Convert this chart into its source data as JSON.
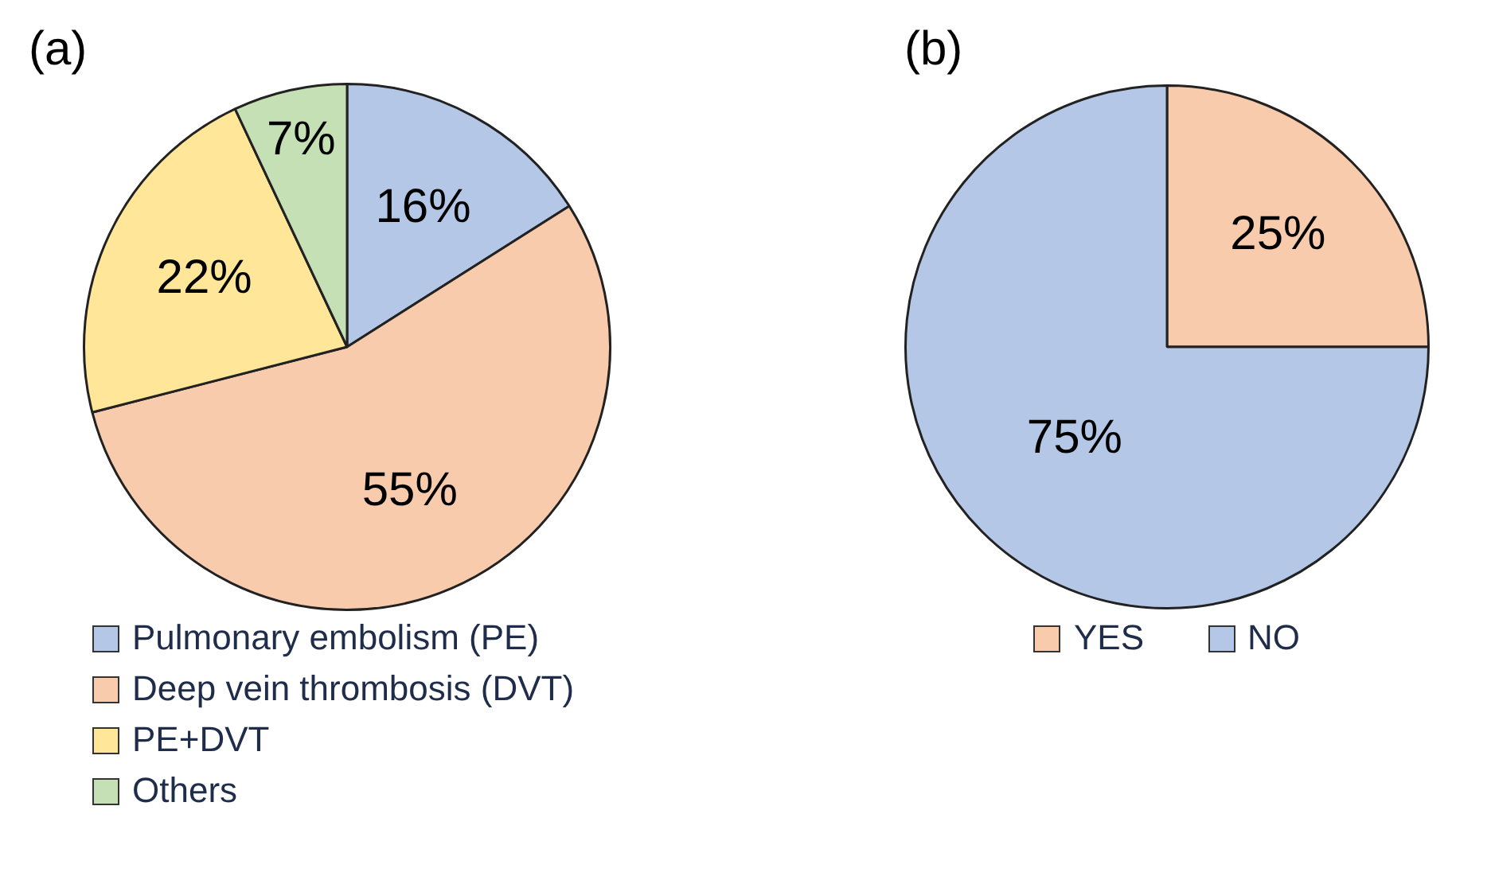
{
  "chart_data": [
    {
      "type": "pie",
      "title": "(a)",
      "categories": [
        "Pulmonary embolism (PE)",
        "Deep vein thrombosis (DVT)",
        "PE+DVT",
        "Others"
      ],
      "values": [
        16,
        55,
        22,
        7
      ],
      "colors": [
        "#b4c7e7",
        "#f8cbad",
        "#ffe699",
        "#c5e0b4"
      ],
      "value_labels": [
        "16%",
        "55%",
        "22%",
        "7%"
      ],
      "legend": "bottom"
    },
    {
      "type": "pie",
      "title": "(b)",
      "categories": [
        "YES",
        "NO"
      ],
      "values": [
        25,
        75
      ],
      "colors": [
        "#f8cbad",
        "#b4c7e7"
      ],
      "value_labels": [
        "25%",
        "75%"
      ],
      "legend": "bottom"
    }
  ]
}
